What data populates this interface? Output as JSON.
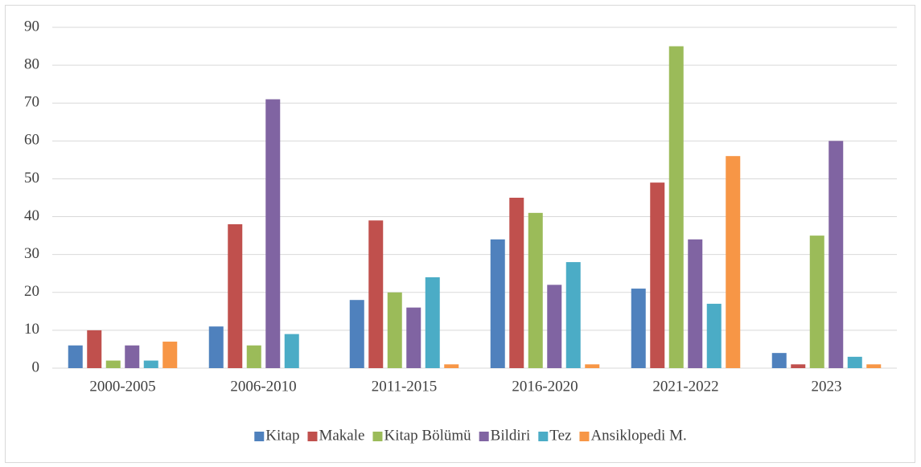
{
  "chart_data": {
    "type": "bar",
    "categories": [
      "2000-2005",
      "2006-2010",
      "2011-2015",
      "2016-2020",
      "2021-2022",
      "2023"
    ],
    "series": [
      {
        "name": "Kitap",
        "color": "#4f81bd",
        "values": [
          6,
          11,
          18,
          34,
          21,
          4
        ]
      },
      {
        "name": "Makale",
        "color": "#c0504d",
        "values": [
          10,
          38,
          39,
          45,
          49,
          1
        ]
      },
      {
        "name": "Kitap Bölümü",
        "color": "#9bbb59",
        "values": [
          2,
          6,
          20,
          41,
          85,
          35
        ]
      },
      {
        "name": "Bildiri",
        "color": "#8064a2",
        "values": [
          6,
          71,
          16,
          22,
          34,
          60
        ]
      },
      {
        "name": "Tez",
        "color": "#4bacc6",
        "values": [
          2,
          9,
          24,
          28,
          17,
          3
        ]
      },
      {
        "name": "Ansiklopedi M.",
        "color": "#f79646",
        "values": [
          7,
          0,
          1,
          1,
          56,
          1
        ]
      }
    ],
    "ylim": [
      0,
      90
    ],
    "yticks": [
      0,
      10,
      20,
      30,
      40,
      50,
      60,
      70,
      80,
      90
    ],
    "grid": true,
    "legend": "bottom"
  }
}
